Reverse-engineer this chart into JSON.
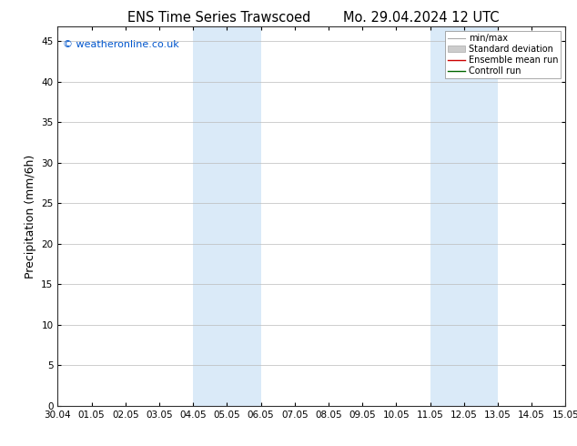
{
  "title_left": "ENS Time Series Trawscoed",
  "title_right": "Mo. 29.04.2024 12 UTC",
  "ylabel": "Precipitation (mm/6h)",
  "copyright": "© weatheronline.co.uk",
  "copyright_color": "#0055cc",
  "xlabels": [
    "30.04",
    "01.05",
    "02.05",
    "03.05",
    "04.05",
    "05.05",
    "06.05",
    "07.05",
    "08.05",
    "09.05",
    "10.05",
    "11.05",
    "12.05",
    "13.05",
    "14.05",
    "15.05"
  ],
  "xticks": [
    0,
    1,
    2,
    3,
    4,
    5,
    6,
    7,
    8,
    9,
    10,
    11,
    12,
    13,
    14,
    15
  ],
  "ylim": [
    0,
    46.8
  ],
  "yticks": [
    0,
    5,
    10,
    15,
    20,
    25,
    30,
    35,
    40,
    45
  ],
  "shaded_bands": [
    {
      "xmin": 4,
      "xmax": 5,
      "color": "#daeaf8"
    },
    {
      "xmin": 5,
      "xmax": 6,
      "color": "#daeaf8"
    },
    {
      "xmin": 11,
      "xmax": 12,
      "color": "#daeaf8"
    },
    {
      "xmin": 12,
      "xmax": 13,
      "color": "#daeaf8"
    }
  ],
  "legend_entries": [
    {
      "label": "min/max",
      "color": "#aaaaaa",
      "type": "minmax"
    },
    {
      "label": "Standard deviation",
      "color": "#cccccc",
      "type": "fill"
    },
    {
      "label": "Ensemble mean run",
      "color": "#cc0000",
      "linewidth": 1.0
    },
    {
      "label": "Controll run",
      "color": "#006600",
      "linewidth": 1.0
    }
  ],
  "background_color": "#ffffff",
  "plot_background": "#ffffff",
  "grid_color": "#bbbbbb",
  "tick_fontsize": 7.5,
  "label_fontsize": 9,
  "title_fontsize": 10.5
}
